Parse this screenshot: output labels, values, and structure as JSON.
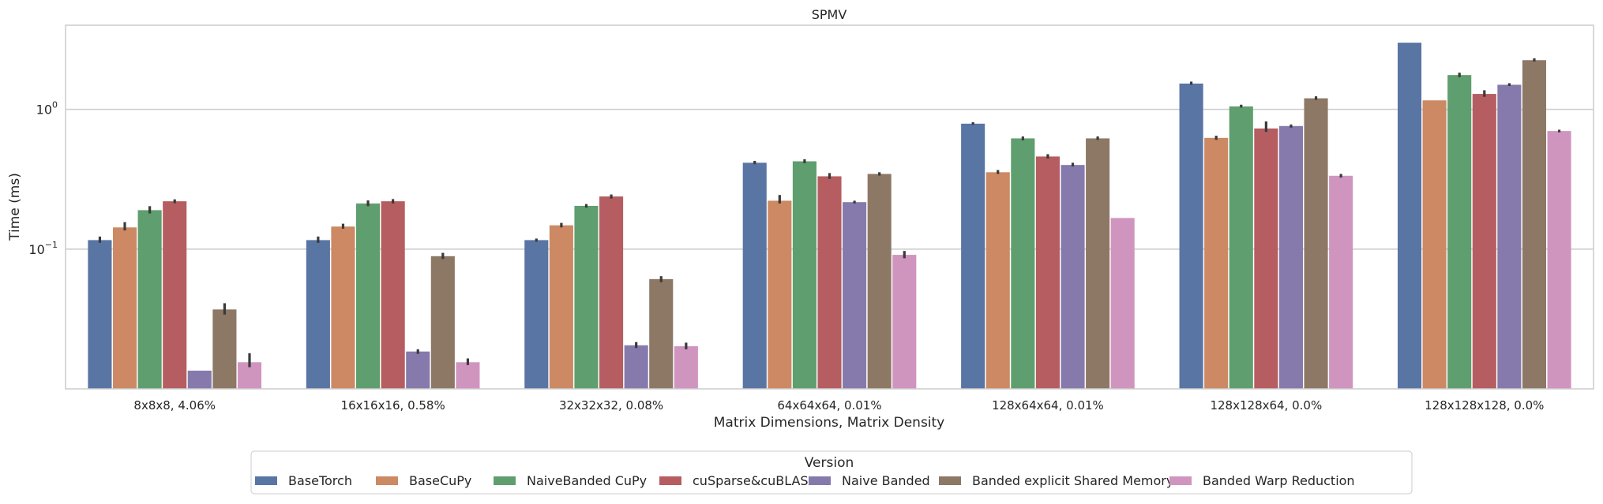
{
  "chart_data": {
    "type": "bar",
    "title": "SPMV",
    "xlabel": "Matrix Dimensions, Matrix Density",
    "ylabel": "Time (ms)",
    "yscale": "log",
    "ylim": [
      0.01,
      4.0
    ],
    "yticks": [
      {
        "value": 0.1,
        "base": "10",
        "exp": "−1"
      },
      {
        "value": 1.0,
        "base": "10",
        "exp": "0"
      }
    ],
    "grid": true,
    "legend_title": "Version",
    "legend_position": "bottom-center",
    "categories": [
      "8x8x8, 4.06%",
      "16x16x16, 0.58%",
      "32x32x32, 0.08%",
      "64x64x64, 0.01%",
      "128x64x64, 0.01%",
      "128x128x64, 0.0%",
      "128x128x128, 0.0%"
    ],
    "series": [
      {
        "name": "BaseTorch",
        "color": "#5975a4",
        "values": [
          0.116,
          0.116,
          0.116,
          0.415,
          0.79,
          1.53,
          3.0
        ],
        "err_low": [
          0.111,
          0.111,
          0.113,
          0.405,
          0.775,
          1.5,
          3.0
        ],
        "err_high": [
          0.123,
          0.123,
          0.119,
          0.428,
          0.81,
          1.58,
          3.0
        ]
      },
      {
        "name": "BaseCuPy",
        "color": "#cc8963",
        "values": [
          0.143,
          0.145,
          0.148,
          0.222,
          0.355,
          0.625,
          1.16
        ],
        "err_low": [
          0.136,
          0.14,
          0.143,
          0.212,
          0.345,
          0.605,
          1.16
        ],
        "err_high": [
          0.156,
          0.152,
          0.154,
          0.244,
          0.368,
          0.648,
          1.16
        ]
      },
      {
        "name": "NaiveBanded CuPy",
        "color": "#5f9e6e",
        "values": [
          0.19,
          0.212,
          0.204,
          0.425,
          0.62,
          1.05,
          1.76
        ],
        "err_low": [
          0.18,
          0.203,
          0.198,
          0.412,
          0.6,
          1.03,
          1.7
        ],
        "err_high": [
          0.203,
          0.223,
          0.21,
          0.44,
          0.64,
          1.08,
          1.83
        ]
      },
      {
        "name": "cuSparse&cuBLAS",
        "color": "#b55d60",
        "values": [
          0.22,
          0.22,
          0.238,
          0.332,
          0.46,
          0.73,
          1.29
        ],
        "err_low": [
          0.213,
          0.212,
          0.23,
          0.318,
          0.445,
          0.69,
          1.23
        ],
        "err_high": [
          0.227,
          0.228,
          0.246,
          0.35,
          0.478,
          0.82,
          1.37
        ]
      },
      {
        "name": "Naive Banded",
        "color": "#857aab",
        "values": [
          0.0135,
          0.0185,
          0.0205,
          0.217,
          0.4,
          0.76,
          1.5
        ],
        "err_low": [
          0.0135,
          0.0178,
          0.0196,
          0.212,
          0.39,
          0.74,
          1.47
        ],
        "err_high": [
          0.0135,
          0.0192,
          0.0216,
          0.222,
          0.415,
          0.78,
          1.54
        ]
      },
      {
        "name": "Banded explicit Shared Memory",
        "color": "#8d7866",
        "values": [
          0.037,
          0.089,
          0.061,
          0.345,
          0.62,
          1.2,
          2.25
        ],
        "err_low": [
          0.034,
          0.085,
          0.058,
          0.336,
          0.605,
          1.17,
          2.2
        ],
        "err_high": [
          0.041,
          0.094,
          0.064,
          0.355,
          0.64,
          1.24,
          2.32
        ]
      },
      {
        "name": "Banded Warp Reduction",
        "color": "#d095bf",
        "values": [
          0.0155,
          0.0155,
          0.0202,
          0.091,
          0.167,
          0.335,
          0.7
        ],
        "err_low": [
          0.0143,
          0.0148,
          0.0192,
          0.086,
          0.167,
          0.325,
          0.685
        ],
        "err_high": [
          0.018,
          0.0165,
          0.0214,
          0.097,
          0.167,
          0.345,
          0.715
        ]
      }
    ]
  }
}
